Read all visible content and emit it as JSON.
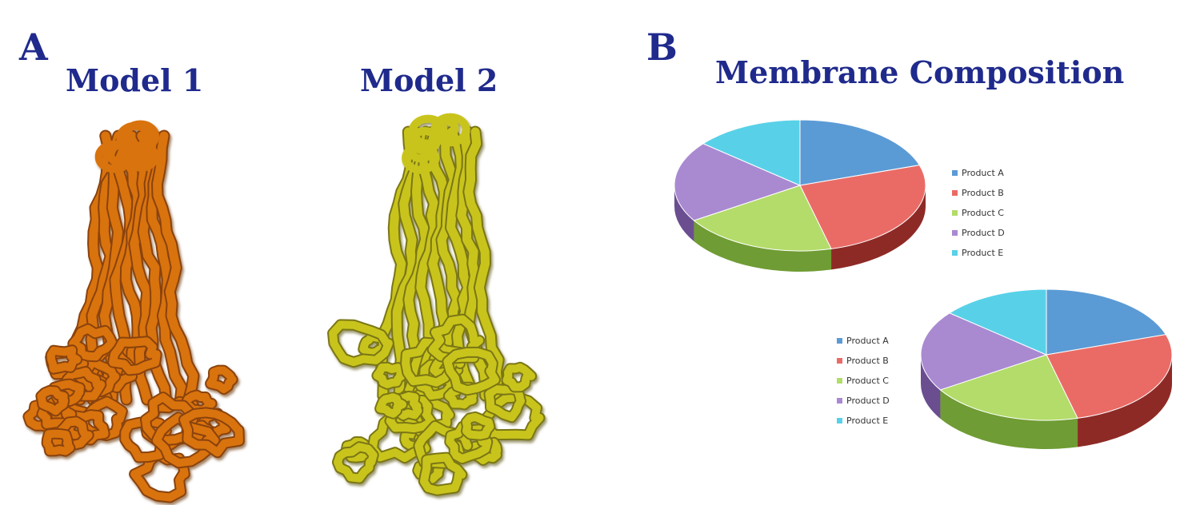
{
  "panels": {
    "a": {
      "letter": "A"
    },
    "b": {
      "letter": "B"
    }
  },
  "models": [
    {
      "title": "Model 1",
      "color": "#d9730f",
      "shadow": "#8a430a"
    },
    {
      "title": "Model 2",
      "color": "#c9c41c",
      "shadow": "#7a7612"
    }
  ],
  "chart_title": "Membrane Composition",
  "chart_data": [
    {
      "type": "pie",
      "categories": [
        "Product A",
        "Product B",
        "Product C",
        "Product D",
        "Product E"
      ],
      "values": [
        20,
        26,
        20,
        20,
        14
      ],
      "colors": [
        "#5b9bd5",
        "#ea6b66",
        "#b3dc6a",
        "#a98ad1",
        "#58d1e8"
      ],
      "sideColors": [
        "#3a6c9c",
        "#8e2a26",
        "#6f9c34",
        "#6a4e90",
        "#2e8da0"
      ],
      "legend_position": "right"
    },
    {
      "type": "pie",
      "categories": [
        "Product A",
        "Product B",
        "Product C",
        "Product D",
        "Product E"
      ],
      "values": [
        20,
        26,
        20,
        20,
        14
      ],
      "colors": [
        "#5b9bd5",
        "#ea6b66",
        "#b3dc6a",
        "#a98ad1",
        "#58d1e8"
      ],
      "sideColors": [
        "#3a6c9c",
        "#8e2a26",
        "#6f9c34",
        "#6a4e90",
        "#2e8da0"
      ],
      "legend_position": "left"
    }
  ]
}
